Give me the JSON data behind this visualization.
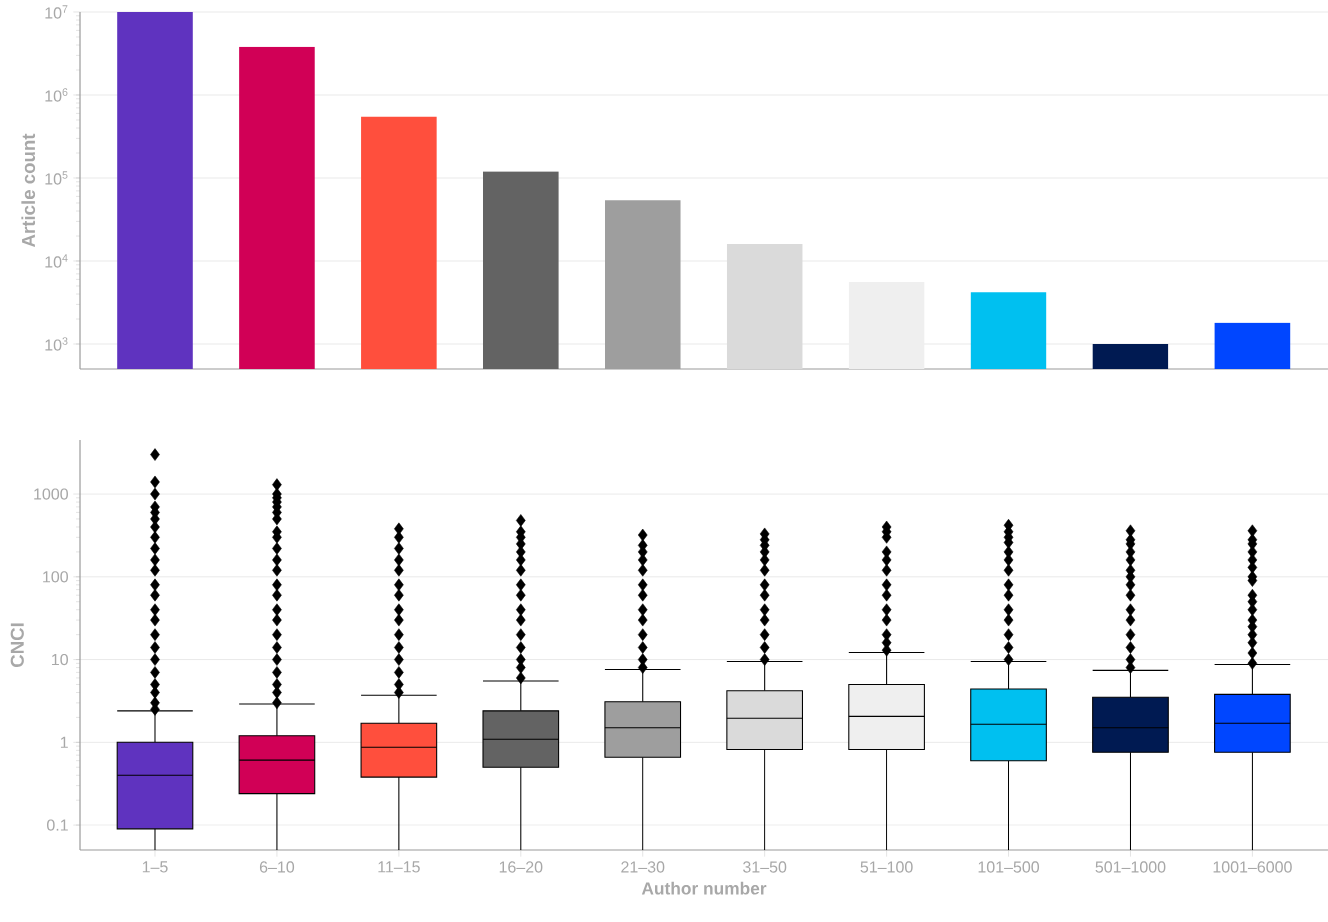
{
  "chart_data": [
    {
      "type": "bar",
      "categories": [
        null,
        null,
        null,
        null,
        null,
        null,
        null,
        null,
        null,
        null
      ],
      "values": [
        10000000,
        3800000,
        550000,
        120000,
        54000,
        16000,
        5600,
        4200,
        1000,
        1800
      ],
      "colors": [
        "#5f33bf",
        "#d10056",
        "#ff4f3d",
        "#636363",
        "#9e9e9e",
        "#dadada",
        "#efefef",
        "#00c0f0",
        "#001a52",
        "#0046ff"
      ],
      "ylabel": "Article count",
      "ylim": [
        500,
        10000000
      ],
      "yticks": [
        {
          "value": 1000,
          "label": "10$^{3}$"
        },
        {
          "value": 10000,
          "label": "10$^{4}$"
        },
        {
          "value": 100000,
          "label": "10$^{5}$"
        },
        {
          "value": 1000000,
          "label": "10$^{6}$"
        },
        {
          "value": 10000000,
          "label": "10$^{7}$"
        }
      ],
      "log": true,
      "grid": "y",
      "tick_labels": "y"
    },
    {
      "type": "box",
      "categories": [
        "1–5",
        "6–10",
        "11–15",
        "16–20",
        "21–30",
        "31–50",
        "51–100",
        "101–500",
        "501–1000",
        "1001–6000"
      ],
      "boxes": [
        {
          "low": 0.05,
          "q1": 0.09,
          "median": 0.4,
          "q3": 1.0,
          "high": 2.4,
          "outliers": [
            2.5,
            3,
            4,
            5,
            7,
            10,
            14,
            20,
            30,
            40,
            60,
            80,
            120,
            160,
            220,
            300,
            400,
            500,
            600,
            700,
            1000,
            1400,
            3000
          ]
        },
        {
          "low": 0.05,
          "q1": 0.24,
          "median": 0.61,
          "q3": 1.2,
          "high": 2.9,
          "outliers": [
            3,
            4,
            5,
            7,
            10,
            14,
            20,
            30,
            40,
            60,
            80,
            120,
            160,
            220,
            300,
            350,
            500,
            600,
            700,
            800,
            900,
            1000,
            1300
          ]
        },
        {
          "low": 0.05,
          "q1": 0.38,
          "median": 0.87,
          "q3": 1.7,
          "high": 3.7,
          "outliers": [
            4,
            5,
            7,
            10,
            14,
            20,
            30,
            40,
            60,
            80,
            120,
            160,
            220,
            300,
            380
          ]
        },
        {
          "low": 0.05,
          "q1": 0.5,
          "median": 1.09,
          "q3": 2.4,
          "high": 5.5,
          "outliers": [
            6,
            8,
            10,
            14,
            20,
            30,
            40,
            60,
            80,
            120,
            160,
            200,
            250,
            300,
            350,
            480
          ]
        },
        {
          "low": 0.05,
          "q1": 0.66,
          "median": 1.5,
          "q3": 3.1,
          "high": 7.6,
          "outliers": [
            8,
            10,
            14,
            20,
            30,
            40,
            60,
            80,
            120,
            160,
            200,
            240,
            320
          ]
        },
        {
          "low": 0.05,
          "q1": 0.82,
          "median": 1.95,
          "q3": 4.2,
          "high": 9.5,
          "outliers": [
            10,
            14,
            20,
            30,
            40,
            60,
            80,
            120,
            160,
            200,
            240,
            280,
            330
          ]
        },
        {
          "low": 0.05,
          "q1": 0.82,
          "median": 2.06,
          "q3": 5.0,
          "high": 12.2,
          "outliers": [
            13,
            16,
            20,
            30,
            40,
            60,
            80,
            120,
            160,
            200,
            300,
            350,
            400
          ]
        },
        {
          "low": 0.05,
          "q1": 0.6,
          "median": 1.65,
          "q3": 4.4,
          "high": 9.5,
          "outliers": [
            10,
            14,
            20,
            30,
            40,
            60,
            80,
            120,
            160,
            200,
            260,
            300,
            350,
            420
          ]
        },
        {
          "low": 0.05,
          "q1": 0.76,
          "median": 1.5,
          "q3": 3.5,
          "high": 7.4,
          "outliers": [
            8,
            10,
            14,
            20,
            30,
            40,
            60,
            80,
            100,
            120,
            160,
            200,
            250,
            280,
            360
          ]
        },
        {
          "low": 0.05,
          "q1": 0.76,
          "median": 1.7,
          "q3": 3.8,
          "high": 8.7,
          "outliers": [
            9,
            12,
            16,
            20,
            25,
            30,
            40,
            50,
            60,
            90,
            100,
            130,
            160,
            200,
            250,
            280,
            360
          ]
        }
      ],
      "colors": [
        "#5f33bf",
        "#d10056",
        "#ff4f3d",
        "#636363",
        "#9e9e9e",
        "#dadada",
        "#efefef",
        "#00c0f0",
        "#001a52",
        "#0046ff"
      ],
      "xlabel": "Author number",
      "ylabel": "CNCI",
      "ylim": [
        0.05,
        4500
      ],
      "yticks": [
        0.1,
        1,
        10,
        100,
        1000
      ],
      "log": true,
      "grid": "y",
      "marker": "diamond"
    }
  ]
}
